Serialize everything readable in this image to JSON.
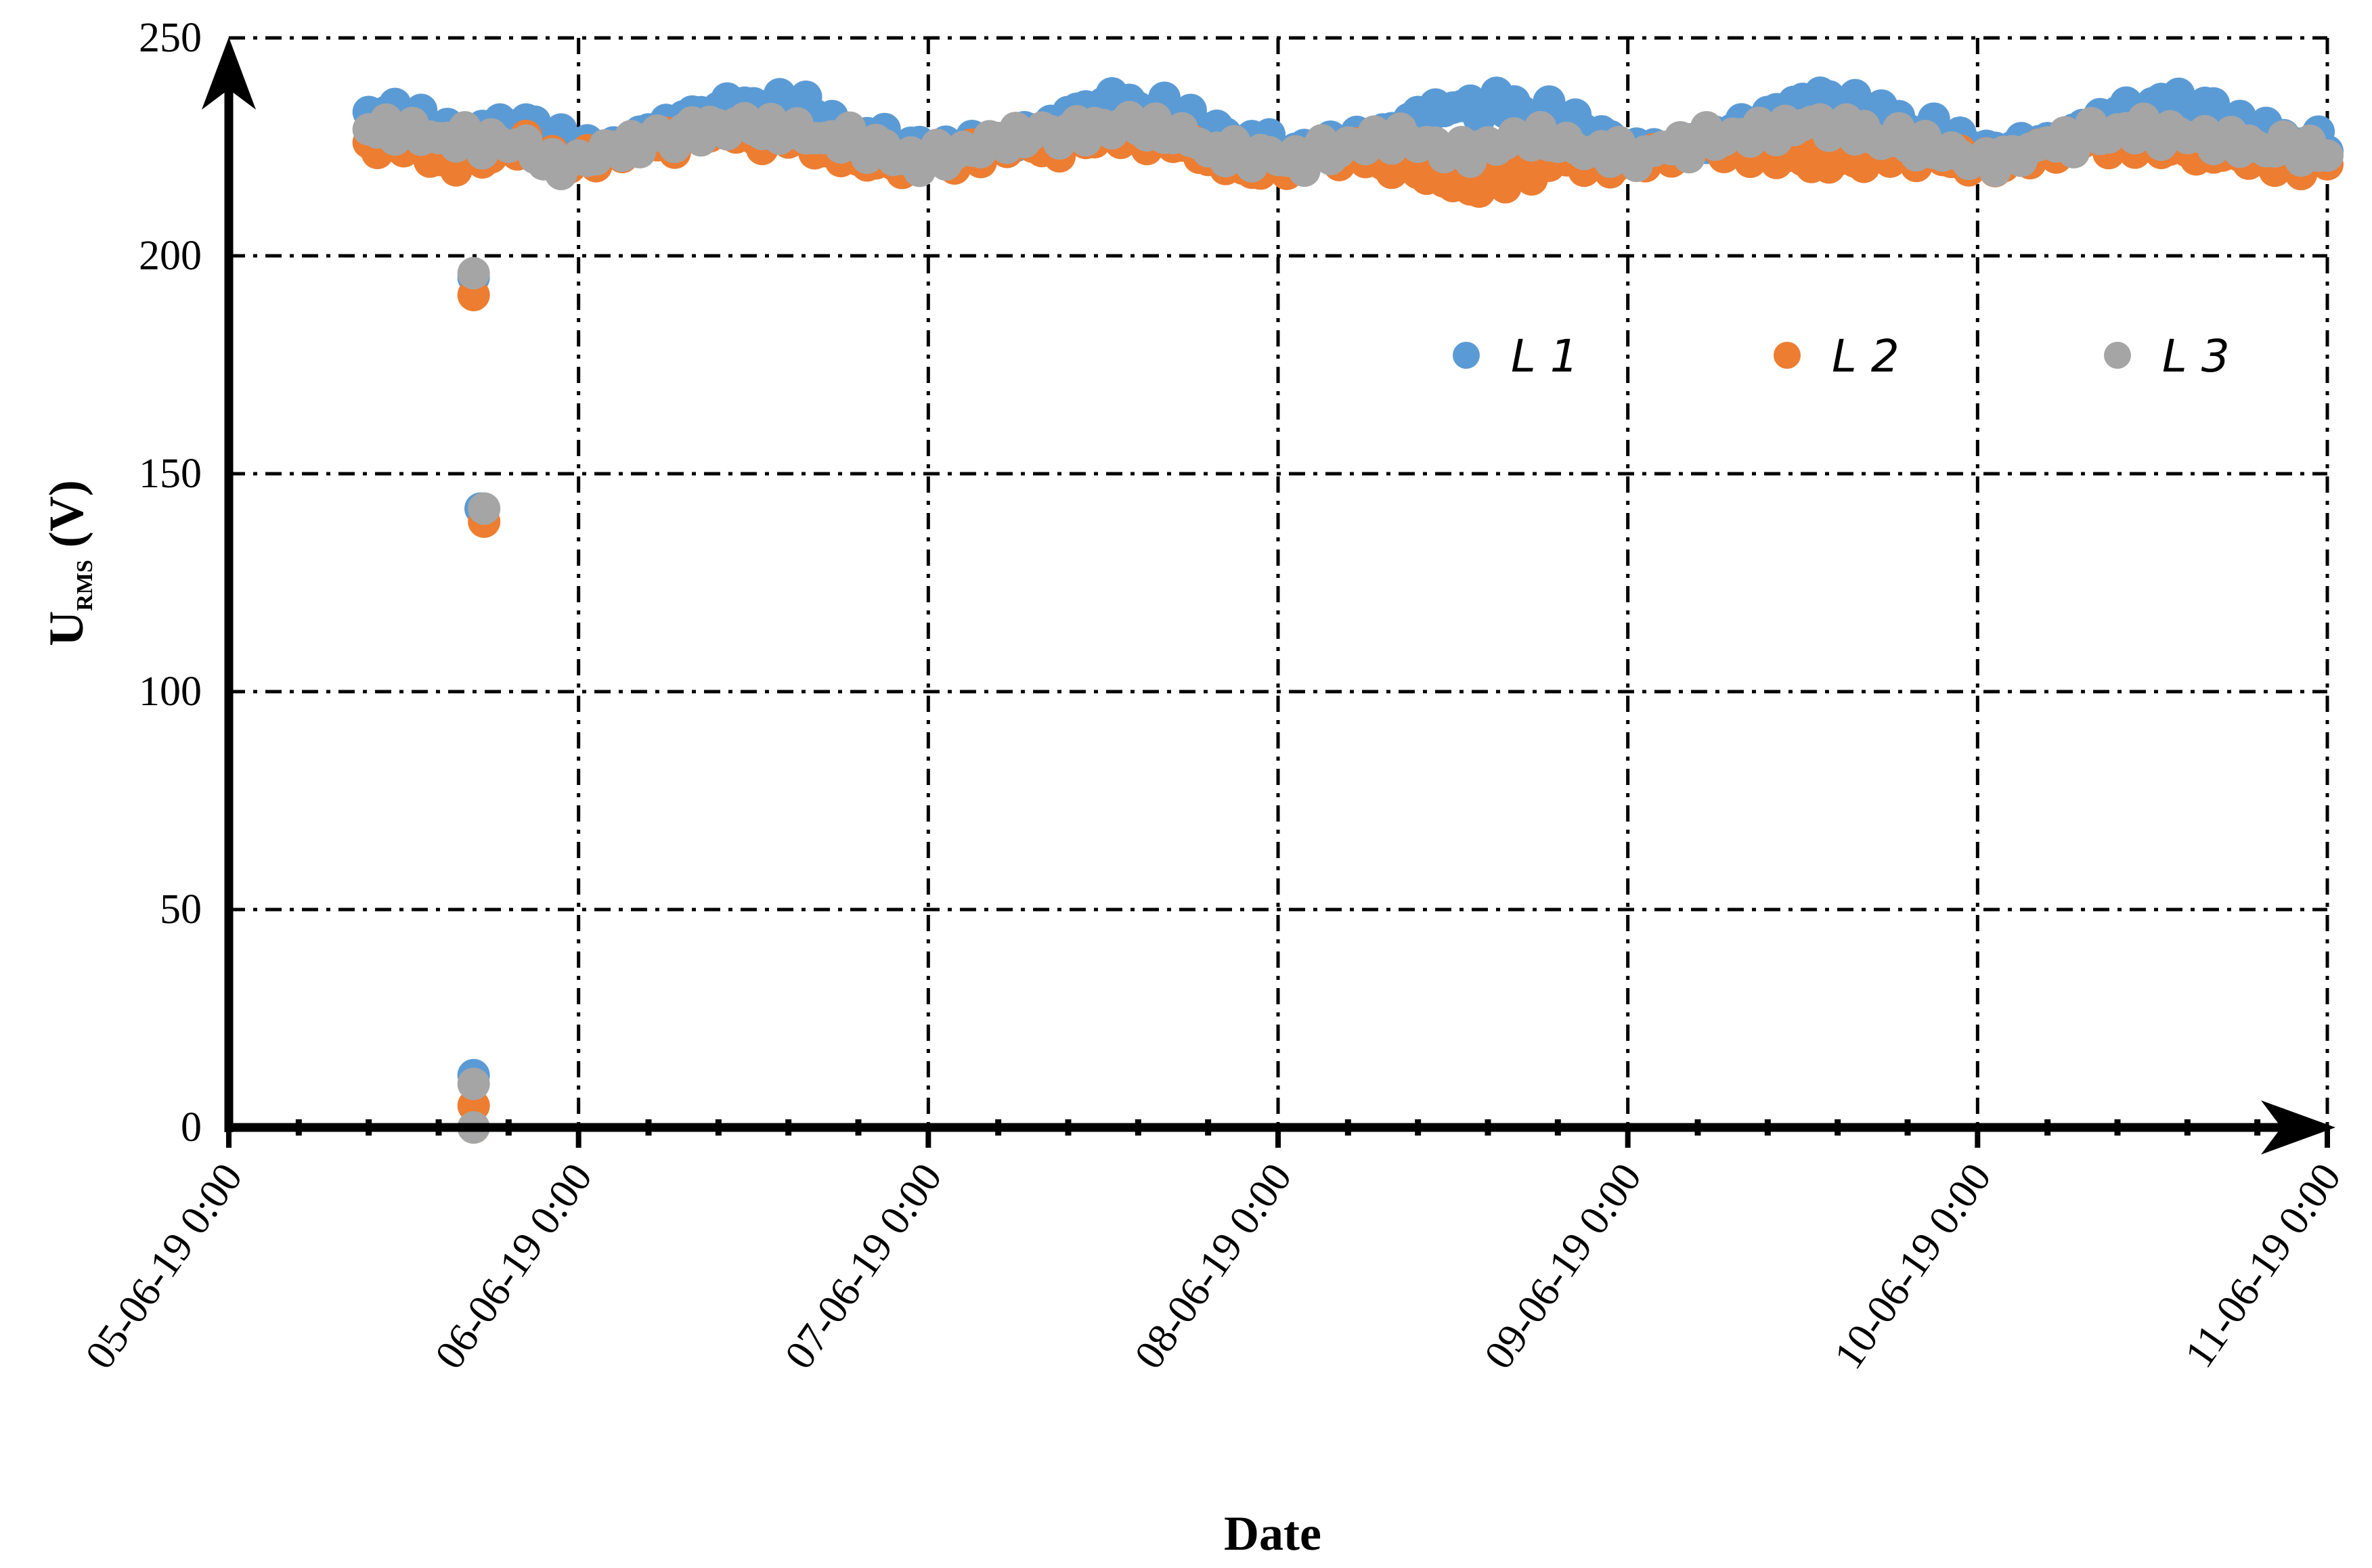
{
  "chart_data": {
    "type": "scatter",
    "title": "",
    "xlabel": "Date",
    "ylabel": "U",
    "ylabel_subscript": "RMS",
    "ylabel_unit": " (V)",
    "ylim": [
      0,
      250
    ],
    "yticks": [
      0,
      50,
      100,
      150,
      200,
      250
    ],
    "xlim": [
      0,
      6
    ],
    "xticks": [
      0,
      1,
      2,
      3,
      4,
      5,
      6
    ],
    "xtick_labels": [
      "05-06-19 0:00",
      "06-06-19 0:00",
      "07-06-19 0:00",
      "08-06-19 0:00",
      "09-06-19 0:00",
      "10-06-19 0:00",
      "11-06-19 0:00"
    ],
    "x_units": "days since 05-06-19 0:00",
    "grid": true,
    "legend_position": "top-right",
    "series": [
      {
        "name": "L 1",
        "color": "#5b9bd5",
        "x": [
          0.4,
          0.5,
          0.6,
          0.7,
          0.8,
          0.9,
          1.0,
          1.1,
          1.2,
          1.3,
          1.4,
          1.5,
          1.6,
          1.7,
          1.8,
          1.9,
          2.0,
          2.1,
          2.2,
          2.3,
          2.4,
          2.5,
          2.6,
          2.7,
          2.8,
          2.9,
          3.0,
          3.1,
          3.2,
          3.3,
          3.4,
          3.5,
          3.6,
          3.7,
          3.8,
          3.9,
          4.0,
          4.1,
          4.2,
          4.3,
          4.4,
          4.5,
          4.6,
          4.7,
          4.8,
          4.9,
          5.0,
          5.1,
          5.2,
          5.3,
          5.4,
          5.5,
          5.6,
          5.7,
          5.8,
          5.9,
          6.0,
          0.7,
          0.7,
          0.72,
          0.7
        ],
        "y": [
          233,
          231,
          228,
          229,
          230,
          227,
          224,
          226,
          229,
          232,
          234,
          235,
          234,
          230,
          227,
          225,
          224,
          225,
          227,
          229,
          233,
          235,
          234,
          231,
          228,
          226,
          224,
          225,
          226,
          229,
          233,
          234,
          235,
          233,
          230,
          227,
          224,
          225,
          226,
          229,
          233,
          236,
          235,
          232,
          229,
          226,
          224,
          225,
          227,
          230,
          233,
          235,
          234,
          230,
          228,
          226,
          224,
          195,
          12,
          142,
          0
        ]
      },
      {
        "name": "L 2",
        "color": "#ed7d31",
        "x": [
          0.4,
          0.5,
          0.6,
          0.7,
          0.8,
          0.9,
          1.0,
          1.1,
          1.2,
          1.3,
          1.4,
          1.5,
          1.6,
          1.7,
          1.8,
          1.9,
          2.0,
          2.1,
          2.2,
          2.3,
          2.4,
          2.5,
          2.6,
          2.7,
          2.8,
          2.9,
          3.0,
          3.1,
          3.2,
          3.3,
          3.4,
          3.5,
          3.6,
          3.7,
          3.8,
          3.9,
          4.0,
          4.1,
          4.2,
          4.3,
          4.4,
          4.5,
          4.6,
          4.7,
          4.8,
          4.9,
          5.0,
          5.1,
          5.2,
          5.3,
          5.4,
          5.5,
          5.6,
          5.7,
          5.8,
          5.9,
          6.0,
          0.7,
          0.7,
          0.73,
          0.7
        ],
        "y": [
          226,
          224,
          222,
          223,
          225,
          222,
          223,
          225,
          226,
          228,
          229,
          227,
          226,
          224,
          222,
          221,
          222,
          224,
          226,
          225,
          227,
          228,
          227,
          225,
          222,
          220,
          221,
          223,
          224,
          221,
          219,
          216,
          218,
          220,
          222,
          221,
          222,
          224,
          225,
          224,
          223,
          222,
          222,
          224,
          223,
          222,
          221,
          223,
          225,
          226,
          226,
          225,
          224,
          223,
          222,
          221,
          221,
          191,
          5,
          139,
          0
        ]
      },
      {
        "name": "L 3",
        "color": "#a5a5a5",
        "x": [
          0.4,
          0.5,
          0.6,
          0.7,
          0.8,
          0.9,
          1.0,
          1.1,
          1.2,
          1.3,
          1.4,
          1.5,
          1.6,
          1.7,
          1.8,
          1.9,
          2.0,
          2.1,
          2.2,
          2.3,
          2.4,
          2.5,
          2.6,
          2.7,
          2.8,
          2.9,
          3.0,
          3.1,
          3.2,
          3.3,
          3.4,
          3.5,
          3.6,
          3.7,
          3.8,
          3.9,
          4.0,
          4.1,
          4.2,
          4.3,
          4.4,
          4.5,
          4.6,
          4.7,
          4.8,
          4.9,
          5.0,
          5.1,
          5.2,
          5.3,
          5.4,
          5.5,
          5.6,
          5.7,
          5.8,
          5.9,
          6.0,
          0.7,
          0.7,
          0.73,
          0.7
        ],
        "y": [
          229,
          228,
          227,
          226,
          225,
          221,
          223,
          225,
          227,
          229,
          230,
          229,
          228,
          227,
          225,
          222,
          223,
          225,
          227,
          228,
          229,
          230,
          229,
          227,
          224,
          223,
          222,
          224,
          226,
          227,
          225,
          224,
          226,
          227,
          225,
          224,
          223,
          225,
          227,
          228,
          229,
          230,
          229,
          227,
          225,
          223,
          222,
          224,
          226,
          228,
          229,
          228,
          227,
          226,
          225,
          224,
          223,
          196,
          10,
          142,
          0
        ]
      }
    ]
  }
}
